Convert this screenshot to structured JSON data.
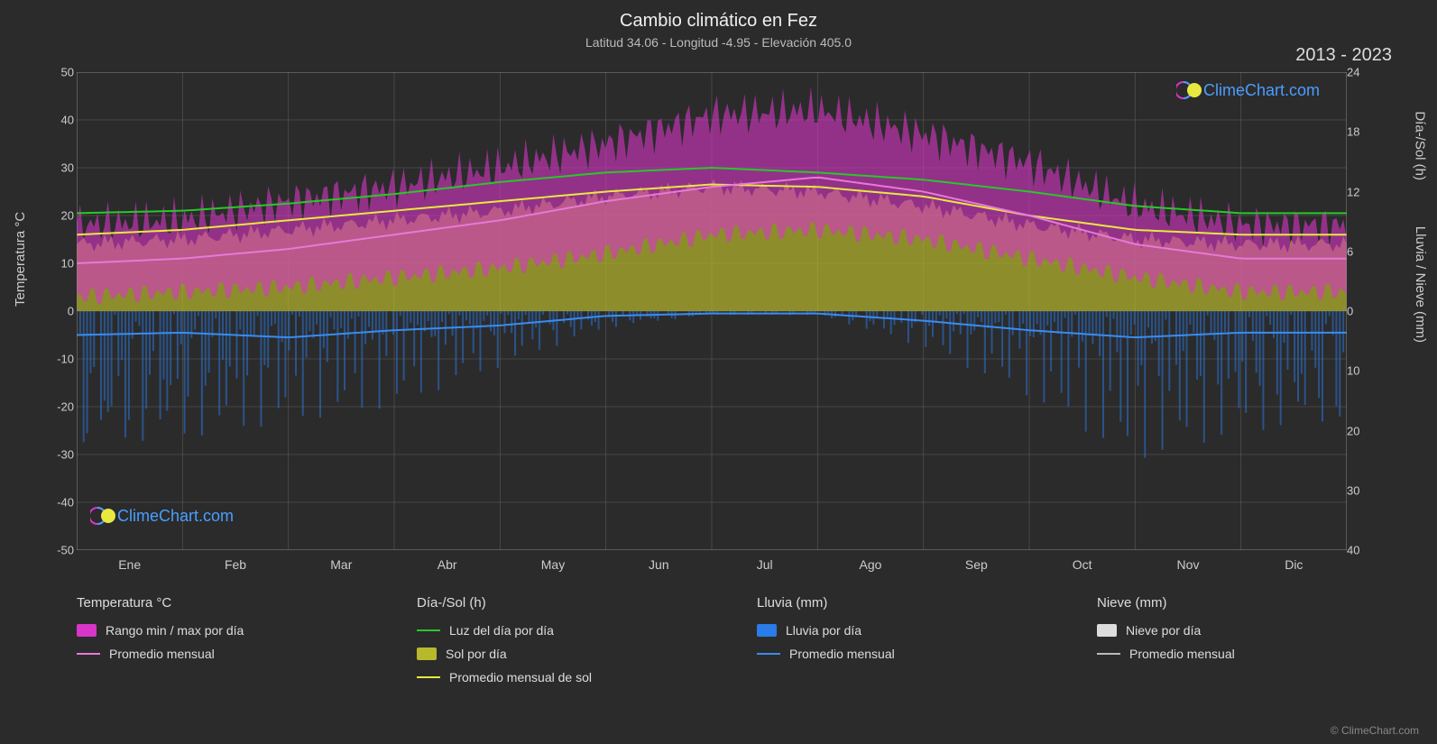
{
  "title": "Cambio climático en Fez",
  "subtitle": "Latitud 34.06 - Longitud -4.95 - Elevación 405.0",
  "year_range": "2013 - 2023",
  "chart": {
    "type": "area",
    "background_color": "#2b2b2b",
    "plot_background_color": "#2b2b2b",
    "grid_color": "#666666",
    "grid_width": 1,
    "border_color": "#888888",
    "text_color": "#cccccc",
    "title_fontsize": 20,
    "subtitle_fontsize": 14,
    "tick_fontsize": 13,
    "label_fontsize": 15,
    "y_left": {
      "label": "Temperatura °C",
      "min": -50,
      "max": 50,
      "step": 10,
      "ticks": [
        50,
        40,
        30,
        20,
        10,
        0,
        -10,
        -20,
        -30,
        -40,
        -50
      ]
    },
    "y_right_top": {
      "label": "Día-/Sol (h)",
      "min": 0,
      "max": 24,
      "step": 6,
      "ticks": [
        24,
        18,
        12,
        6,
        0
      ]
    },
    "y_right_bottom": {
      "label": "Lluvia / Nieve (mm)",
      "min": 0,
      "max": 40,
      "step": 10,
      "ticks": [
        0,
        10,
        20,
        30,
        40
      ]
    },
    "x": {
      "months": [
        "Ene",
        "Feb",
        "Mar",
        "Abr",
        "May",
        "Jun",
        "Jul",
        "Ago",
        "Sep",
        "Oct",
        "Nov",
        "Dic"
      ]
    },
    "series": {
      "temp_range": {
        "color": "#d935c8",
        "opacity": 0.6,
        "low": [
          3,
          4,
          5,
          7,
          9,
          12,
          16,
          17,
          15,
          11,
          7,
          4
        ],
        "high": [
          18,
          19,
          23,
          26,
          30,
          35,
          41,
          42,
          37,
          31,
          22,
          18
        ]
      },
      "temp_avg": {
        "color": "#e878d8",
        "width": 2,
        "values": [
          10,
          11,
          13,
          16,
          19,
          23,
          26,
          28,
          25,
          20,
          14,
          11
        ]
      },
      "daylight": {
        "color": "#28c828",
        "width": 2,
        "values": [
          20.5,
          21,
          22.5,
          24.5,
          27,
          29,
          30,
          29,
          27.5,
          25,
          22,
          20.5
        ]
      },
      "sun_area": {
        "color": "#b8b82c",
        "opacity": 0.7,
        "values": [
          14,
          15,
          17,
          19,
          21,
          24,
          26,
          25,
          22,
          18,
          15,
          14
        ]
      },
      "sun_avg": {
        "color": "#e8e840",
        "width": 2,
        "values": [
          16,
          17,
          19,
          21,
          23,
          25,
          26.5,
          26,
          24,
          20,
          17,
          16
        ]
      },
      "rain_bars": {
        "color": "#2a7ce8",
        "opacity": 0.5,
        "values": [
          -18,
          -15,
          -12,
          -10,
          -6,
          -2,
          -0.5,
          -0.5,
          -4,
          -9,
          -16,
          -14
        ]
      },
      "rain_avg": {
        "color": "#3a8cf0",
        "width": 2,
        "values": [
          -5,
          -4.5,
          -5.5,
          -4,
          -3,
          -1,
          -0.5,
          -0.5,
          -2,
          -4,
          -5.5,
          -4.5
        ]
      },
      "snow": {
        "color": "#dddddd",
        "values": [
          0,
          0,
          0,
          0,
          0,
          0,
          0,
          0,
          0,
          0,
          0,
          0
        ]
      }
    }
  },
  "legend": {
    "temperature": {
      "title": "Temperatura °C",
      "range_label": "Rango min / max por día",
      "avg_label": "Promedio mensual",
      "range_color": "#d935c8",
      "avg_color": "#e878d8"
    },
    "daysun": {
      "title": "Día-/Sol (h)",
      "daylight_label": "Luz del día por día",
      "sun_label": "Sol por día",
      "sunavg_label": "Promedio mensual de sol",
      "daylight_color": "#28c828",
      "sun_color": "#b8b82c",
      "sunavg_color": "#e8e840"
    },
    "rain": {
      "title": "Lluvia (mm)",
      "daily_label": "Lluvia por día",
      "avg_label": "Promedio mensual",
      "daily_color": "#2a7ce8",
      "avg_color": "#3a8cf0"
    },
    "snow": {
      "title": "Nieve (mm)",
      "daily_label": "Nieve por día",
      "avg_label": "Promedio mensual",
      "daily_color": "#dddddd",
      "avg_color": "#bbbbbb"
    }
  },
  "watermark": {
    "text": "ClimeChart.com",
    "color": "#4a9eff",
    "logo_colors": [
      "#d935c8",
      "#4a9eff",
      "#e8e840"
    ]
  },
  "copyright": "© ClimeChart.com"
}
